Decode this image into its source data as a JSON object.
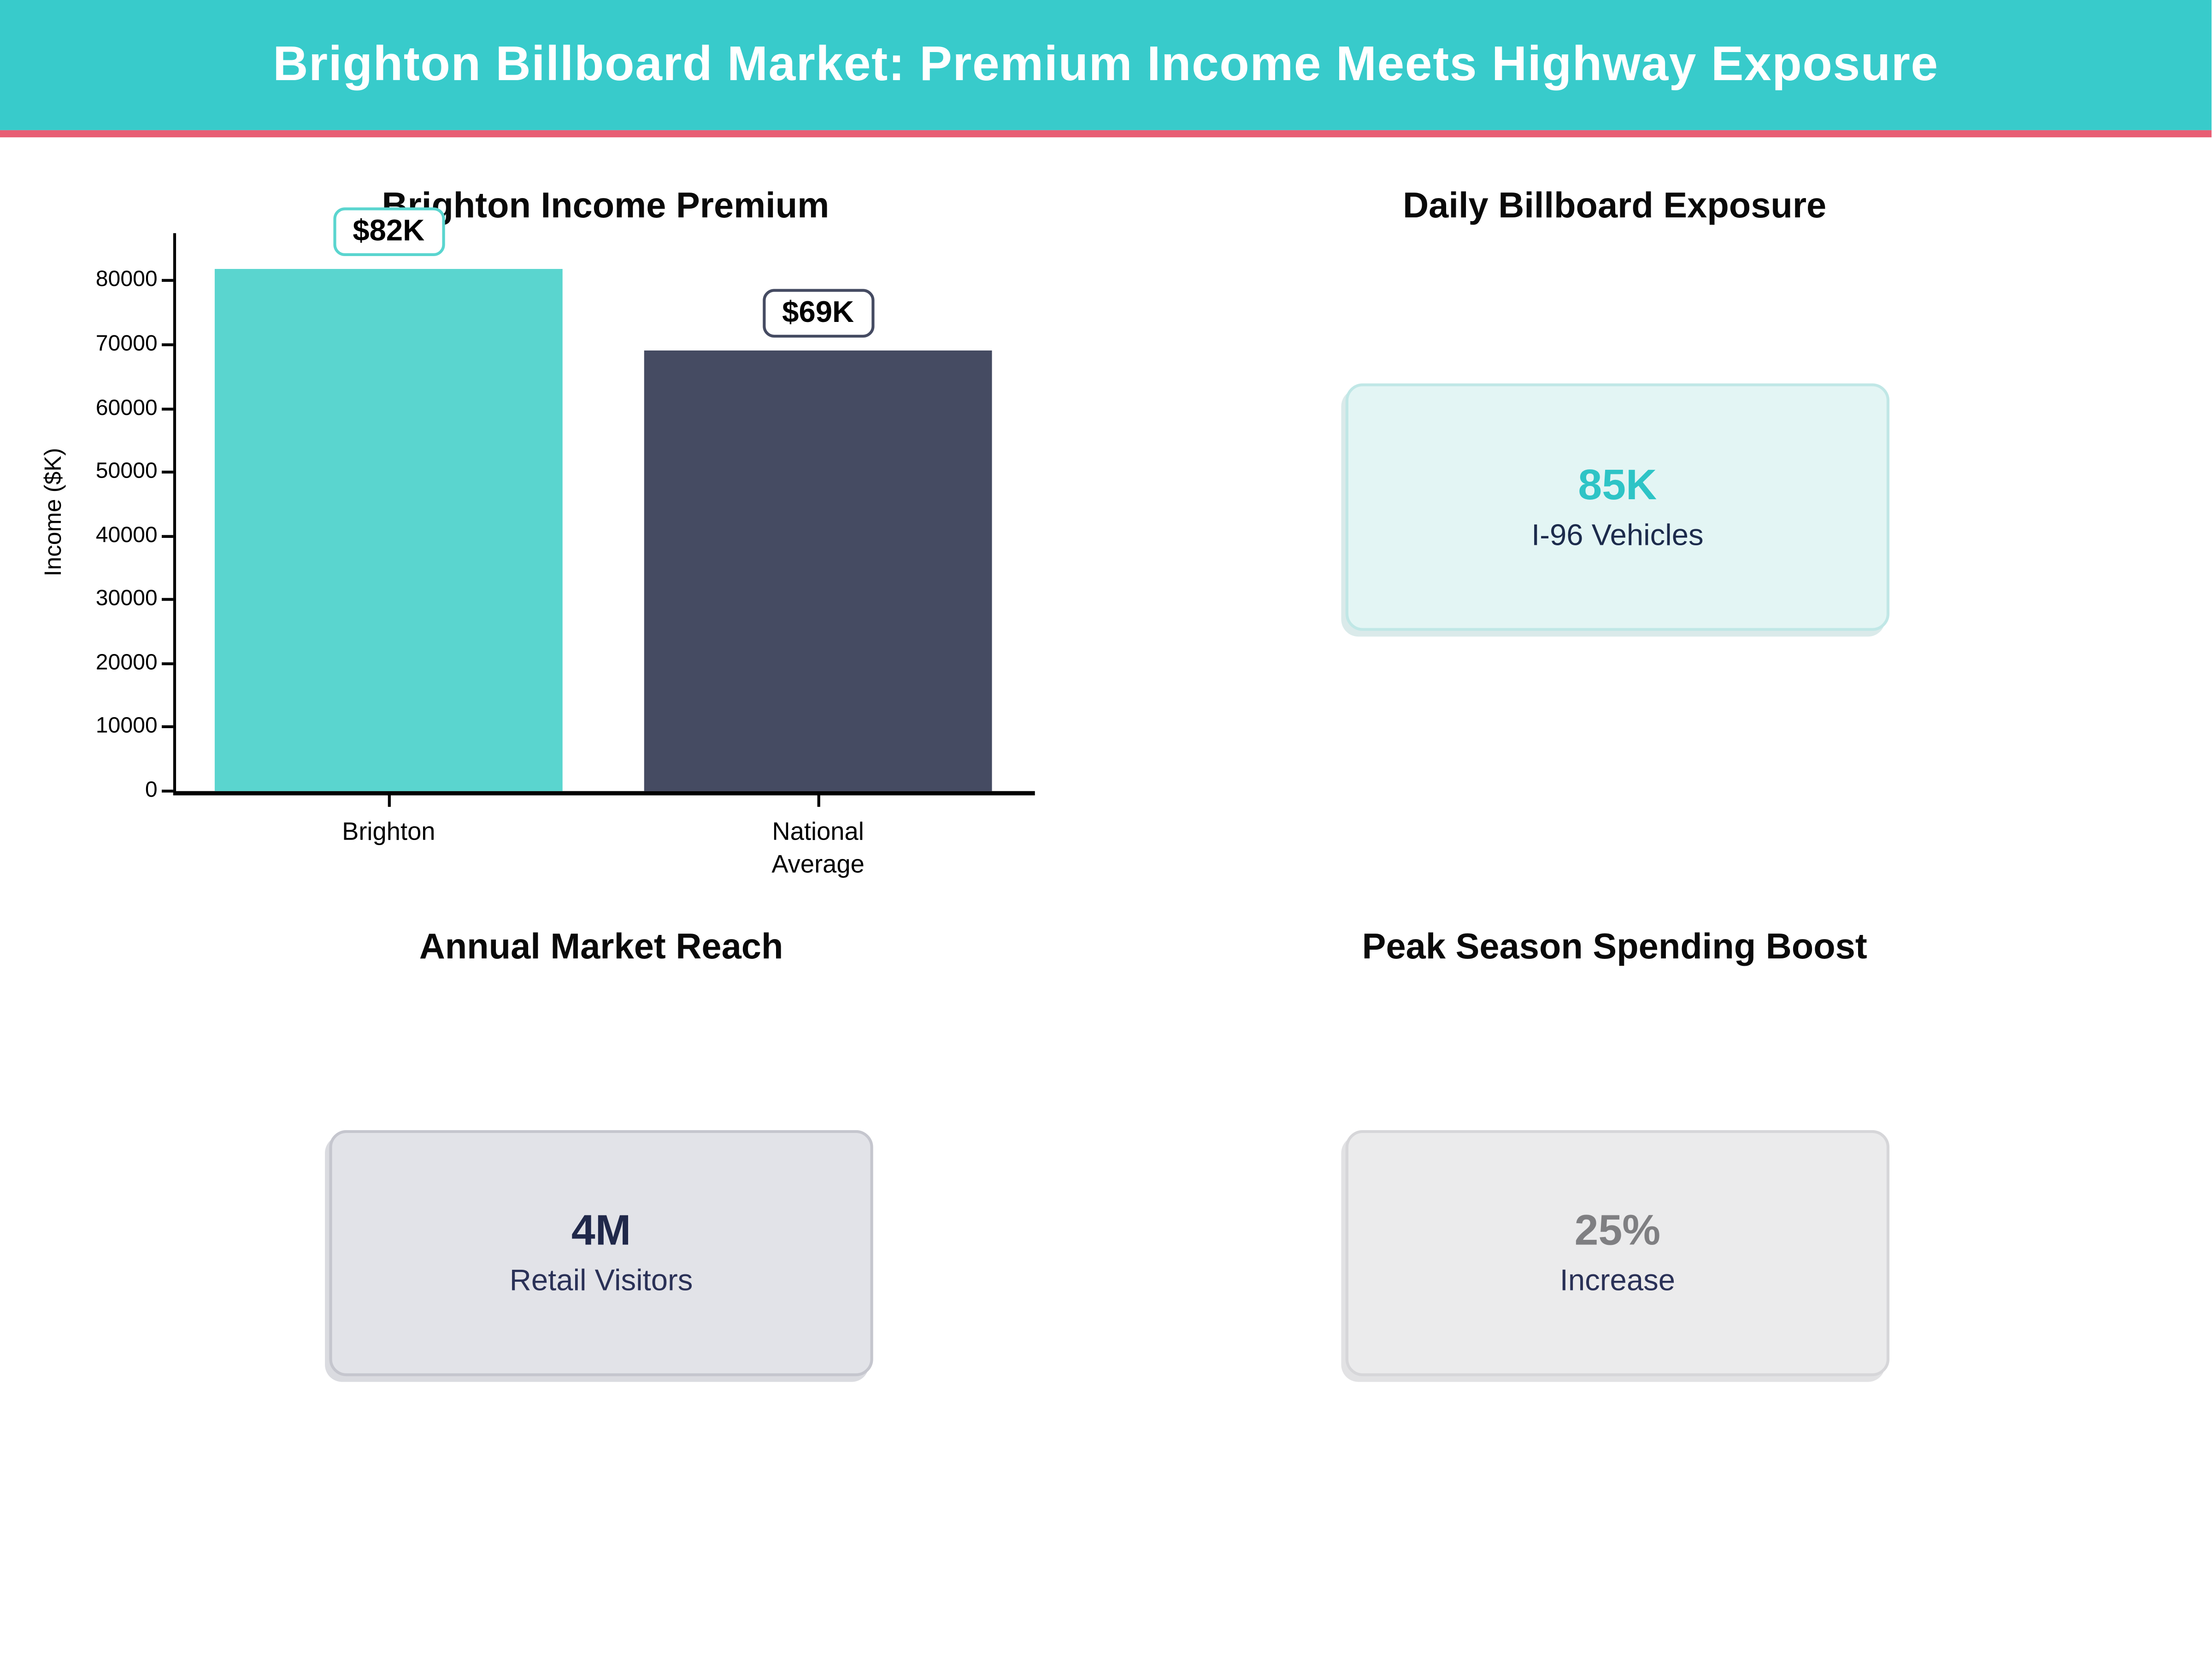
{
  "header": {
    "title": "Brighton Billboard Market: Premium Income Meets Highway Exposure",
    "bg_color": "#38CBCB",
    "accent_color": "#E85D73",
    "text_color": "#FFFFFF"
  },
  "chart_data": {
    "type": "bar",
    "title": "Brighton Income Premium",
    "categories": [
      "Brighton",
      "National\nAverage"
    ],
    "values": [
      82000,
      69000
    ],
    "bar_labels": [
      "$82K",
      "$69K"
    ],
    "bar_colors": [
      "#5AD5CF",
      "#454B62"
    ],
    "xlabel": "",
    "ylabel": "Income ($K)",
    "ylim": [
      0,
      87500
    ],
    "yticks": [
      0,
      10000,
      20000,
      30000,
      40000,
      50000,
      60000,
      70000,
      80000
    ],
    "grid": false,
    "legend": false
  },
  "panels": {
    "exposure": {
      "title": "Daily Billboard Exposure",
      "value": "85K",
      "label": "I-96 Vehicles",
      "value_color": "#2EC4C6",
      "bg_color": "#E3F5F4"
    },
    "reach": {
      "title": "Annual Market Reach",
      "value": "4M",
      "label": "Retail Visitors",
      "value_color": "#20284A",
      "bg_color": "#E2E3E8"
    },
    "boost": {
      "title": "Peak Season Spending Boost",
      "value": "25%",
      "label": "Increase",
      "value_color": "#7F7F82",
      "bg_color": "#EBEBEC"
    }
  }
}
